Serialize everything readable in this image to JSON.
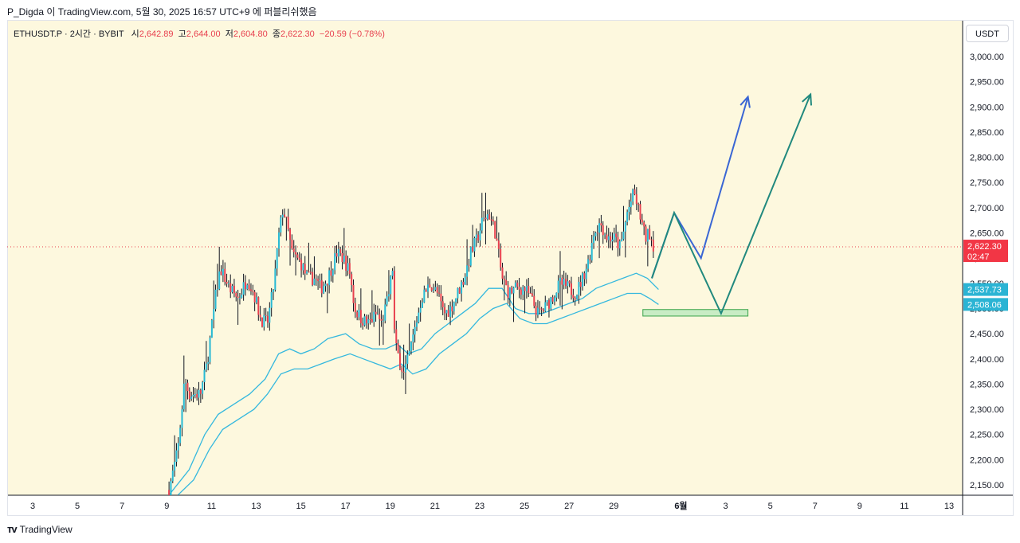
{
  "header": {
    "text": "P_Digda 이 TradingView.com, 5월 30, 2025 16:57 UTC+9 에 퍼블리쉬했음"
  },
  "legend": {
    "symbol": "ETHUSDT.P · 2시간 · BYBIT",
    "open_label": "시",
    "open": "2,642.89",
    "high_label": "고",
    "high": "2,644.00",
    "low_label": "저",
    "low": "2,604.80",
    "close_label": "종",
    "close": "2,622.30",
    "change": "−20.59 (−0.78%)"
  },
  "currency_button": "USDT",
  "price_badge": {
    "price": "2,622.30",
    "countdown": "02:47",
    "color": "#f23645"
  },
  "band_badges": [
    {
      "value": "2,537.73",
      "price": 2537.73,
      "color": "#2bb4d4"
    },
    {
      "value": "2,508.06",
      "price": 2508.06,
      "color": "#2bb4d4"
    }
  ],
  "footer": {
    "brand": "TradingView"
  },
  "colors": {
    "background": "#fdf8de",
    "up": "#26b9d4",
    "down": "#e8414f",
    "band": "#34b8de",
    "projection_blue": "#3a66d4",
    "projection_green": "#21897e",
    "zone_fill": "#c8ecc4",
    "zone_border": "#3aa34a"
  },
  "chart_data": {
    "type": "candlestick",
    "symbol": "ETHUSDT.P",
    "interval": "2시간",
    "exchange": "BYBIT",
    "ylim": [
      2130,
      3040
    ],
    "y_ticks": [
      2150,
      2200,
      2250,
      2300,
      2350,
      2400,
      2450,
      2500,
      2550,
      2600,
      2650,
      2700,
      2750,
      2800,
      2850,
      2900,
      2950,
      3000
    ],
    "y_tick_labels": [
      "2,150.00",
      "2,200.00",
      "2,250.00",
      "2,300.00",
      "2,350.00",
      "2,400.00",
      "2,450.00",
      "2,500.00",
      "2,550.00",
      "2,600.00",
      "2,650.00",
      "2,700.00",
      "2,750.00",
      "2,800.00",
      "2,850.00",
      "2,900.00",
      "2,950.00",
      "3,000.00"
    ],
    "x_range_days": [
      2,
      14
    ],
    "x_ticks": [
      {
        "day": 3,
        "label": "3"
      },
      {
        "day": 5,
        "label": "5"
      },
      {
        "day": 7,
        "label": "7"
      },
      {
        "day": 9,
        "label": "9"
      },
      {
        "day": 11,
        "label": "11"
      },
      {
        "day": 13,
        "label": "13"
      },
      {
        "day": 15,
        "label": "15"
      },
      {
        "day": 17,
        "label": "17"
      },
      {
        "day": 19,
        "label": "19"
      },
      {
        "day": 21,
        "label": "21"
      },
      {
        "day": 23,
        "label": "23"
      },
      {
        "day": 25,
        "label": "25"
      },
      {
        "day": 27,
        "label": "27"
      },
      {
        "day": 29,
        "label": "29"
      },
      {
        "day": 32,
        "label": "6월",
        "bold": true
      },
      {
        "day": 34,
        "label": "3"
      },
      {
        "day": 36,
        "label": "5"
      },
      {
        "day": 38,
        "label": "7"
      },
      {
        "day": 40,
        "label": "9"
      },
      {
        "day": 42,
        "label": "11"
      },
      {
        "day": 44,
        "label": "13"
      }
    ],
    "price_path": [
      [
        9.1,
        2140
      ],
      [
        9.5,
        2220
      ],
      [
        9.8,
        2360
      ],
      [
        10.0,
        2330
      ],
      [
        10.5,
        2330
      ],
      [
        10.8,
        2390
      ],
      [
        11.2,
        2530
      ],
      [
        11.4,
        2580
      ],
      [
        11.8,
        2540
      ],
      [
        12.2,
        2520
      ],
      [
        12.6,
        2560
      ],
      [
        12.9,
        2530
      ],
      [
        13.2,
        2480
      ],
      [
        13.5,
        2470
      ],
      [
        13.8,
        2550
      ],
      [
        14.0,
        2640
      ],
      [
        14.2,
        2700
      ],
      [
        14.4,
        2660
      ],
      [
        14.6,
        2610
      ],
      [
        15.0,
        2590
      ],
      [
        15.3,
        2560
      ],
      [
        15.6,
        2560
      ],
      [
        15.9,
        2540
      ],
      [
        16.2,
        2560
      ],
      [
        16.6,
        2610
      ],
      [
        16.9,
        2600
      ],
      [
        17.2,
        2570
      ],
      [
        17.4,
        2500
      ],
      [
        17.7,
        2480
      ],
      [
        18.0,
        2470
      ],
      [
        18.4,
        2490
      ],
      [
        18.6,
        2470
      ],
      [
        18.9,
        2520
      ],
      [
        19.1,
        2580
      ],
      [
        19.2,
        2430
      ],
      [
        19.4,
        2400
      ],
      [
        19.6,
        2370
      ],
      [
        19.8,
        2400
      ],
      [
        20.1,
        2460
      ],
      [
        20.4,
        2520
      ],
      [
        20.8,
        2550
      ],
      [
        21.1,
        2530
      ],
      [
        21.4,
        2490
      ],
      [
        21.7,
        2500
      ],
      [
        22.0,
        2530
      ],
      [
        22.3,
        2560
      ],
      [
        22.6,
        2610
      ],
      [
        22.9,
        2640
      ],
      [
        23.1,
        2670
      ],
      [
        23.4,
        2690
      ],
      [
        23.7,
        2650
      ],
      [
        24.0,
        2560
      ],
      [
        24.3,
        2530
      ],
      [
        24.6,
        2540
      ],
      [
        25.0,
        2540
      ],
      [
        25.3,
        2520
      ],
      [
        25.6,
        2490
      ],
      [
        25.9,
        2500
      ],
      [
        26.2,
        2520
      ],
      [
        26.6,
        2550
      ],
      [
        27.0,
        2540
      ],
      [
        27.3,
        2530
      ],
      [
        27.6,
        2560
      ],
      [
        27.9,
        2600
      ],
      [
        28.1,
        2650
      ],
      [
        28.4,
        2670
      ],
      [
        28.7,
        2640
      ],
      [
        29.0,
        2640
      ],
      [
        29.3,
        2620
      ],
      [
        29.6,
        2690
      ],
      [
        29.9,
        2730
      ],
      [
        30.2,
        2680
      ],
      [
        30.4,
        2640
      ],
      [
        30.6,
        2650
      ],
      [
        30.8,
        2622.3
      ]
    ],
    "band_upper": [
      [
        9.1,
        2130
      ],
      [
        10.0,
        2180
      ],
      [
        10.7,
        2250
      ],
      [
        11.3,
        2290
      ],
      [
        12.0,
        2310
      ],
      [
        12.7,
        2330
      ],
      [
        13.4,
        2360
      ],
      [
        14.0,
        2410
      ],
      [
        14.5,
        2420
      ],
      [
        15.0,
        2410
      ],
      [
        15.6,
        2420
      ],
      [
        16.2,
        2440
      ],
      [
        17.0,
        2450
      ],
      [
        17.6,
        2430
      ],
      [
        18.2,
        2420
      ],
      [
        18.8,
        2420
      ],
      [
        19.3,
        2430
      ],
      [
        19.8,
        2410
      ],
      [
        20.4,
        2420
      ],
      [
        21.0,
        2450
      ],
      [
        21.6,
        2470
      ],
      [
        22.2,
        2490
      ],
      [
        22.8,
        2510
      ],
      [
        23.4,
        2540
      ],
      [
        24.0,
        2540
      ],
      [
        24.6,
        2500
      ],
      [
        25.2,
        2490
      ],
      [
        25.8,
        2490
      ],
      [
        26.4,
        2500
      ],
      [
        27.0,
        2510
      ],
      [
        27.6,
        2520
      ],
      [
        28.2,
        2540
      ],
      [
        28.8,
        2550
      ],
      [
        29.4,
        2560
      ],
      [
        30.0,
        2570
      ],
      [
        30.5,
        2560
      ],
      [
        31.0,
        2537.73
      ]
    ],
    "band_lower": [
      [
        9.5,
        2130
      ],
      [
        10.2,
        2160
      ],
      [
        10.9,
        2220
      ],
      [
        11.5,
        2260
      ],
      [
        12.2,
        2280
      ],
      [
        12.9,
        2300
      ],
      [
        13.5,
        2330
      ],
      [
        14.1,
        2370
      ],
      [
        14.7,
        2380
      ],
      [
        15.3,
        2380
      ],
      [
        15.9,
        2390
      ],
      [
        16.5,
        2400
      ],
      [
        17.2,
        2410
      ],
      [
        17.8,
        2400
      ],
      [
        18.4,
        2390
      ],
      [
        19.0,
        2380
      ],
      [
        19.5,
        2390
      ],
      [
        20.0,
        2370
      ],
      [
        20.6,
        2380
      ],
      [
        21.2,
        2410
      ],
      [
        21.8,
        2430
      ],
      [
        22.4,
        2450
      ],
      [
        23.0,
        2480
      ],
      [
        23.6,
        2500
      ],
      [
        24.2,
        2510
      ],
      [
        24.8,
        2480
      ],
      [
        25.4,
        2470
      ],
      [
        26.0,
        2470
      ],
      [
        26.6,
        2480
      ],
      [
        27.2,
        2490
      ],
      [
        27.8,
        2500
      ],
      [
        28.4,
        2510
      ],
      [
        29.0,
        2520
      ],
      [
        29.6,
        2530
      ],
      [
        30.2,
        2530
      ],
      [
        30.6,
        2520
      ],
      [
        31.0,
        2508.06
      ]
    ],
    "projection_blue": [
      [
        30.7,
        2560
      ],
      [
        31.7,
        2690
      ],
      [
        32.9,
        2600
      ],
      [
        35.0,
        2920
      ]
    ],
    "projection_green": [
      [
        30.7,
        2560
      ],
      [
        31.7,
        2690
      ],
      [
        33.8,
        2490
      ],
      [
        37.8,
        2925
      ]
    ],
    "support_zone": {
      "x": [
        30.3,
        35.0
      ],
      "y": [
        2485,
        2498
      ]
    },
    "last_price_line": 2622.3
  }
}
